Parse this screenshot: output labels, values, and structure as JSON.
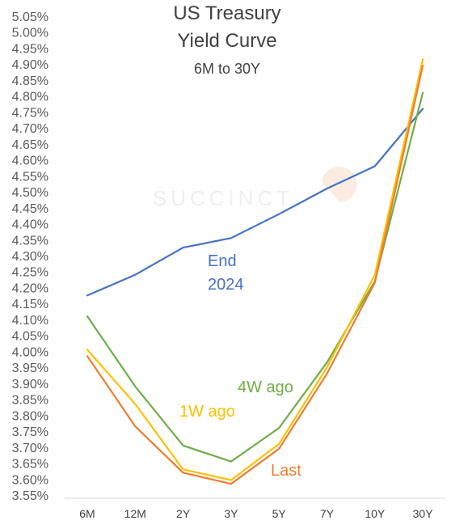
{
  "chart_data": {
    "type": "line",
    "title": "US Treasury",
    "title_line2": "Yield Curve",
    "subtitle": "6M to 30Y",
    "watermark": "SUCCINCT",
    "x": [
      "6M",
      "12M",
      "2Y",
      "3Y",
      "5Y",
      "7Y",
      "10Y",
      "30Y"
    ],
    "ylim": [
      3.55,
      5.05
    ],
    "ytick_step": 0.05,
    "ytick_format": "percent_2dp",
    "grid": false,
    "series": [
      {
        "name": "End",
        "name_line2": "2024",
        "color": "#4472C4",
        "values": [
          4.175,
          4.24,
          4.325,
          4.355,
          4.43,
          4.51,
          4.58,
          4.76
        ]
      },
      {
        "name": "4W ago",
        "color": "#70AD47",
        "values": [
          4.11,
          3.89,
          3.705,
          3.655,
          3.76,
          3.965,
          4.22,
          4.81
        ]
      },
      {
        "name": "1W ago",
        "color": "#FFC000",
        "values": [
          4.005,
          3.835,
          3.63,
          3.597,
          3.71,
          3.95,
          4.24,
          4.915
        ]
      },
      {
        "name": "Last",
        "color": "#ED7D31",
        "values": [
          3.985,
          3.765,
          3.62,
          3.585,
          3.695,
          3.93,
          4.215,
          4.895
        ]
      }
    ]
  }
}
